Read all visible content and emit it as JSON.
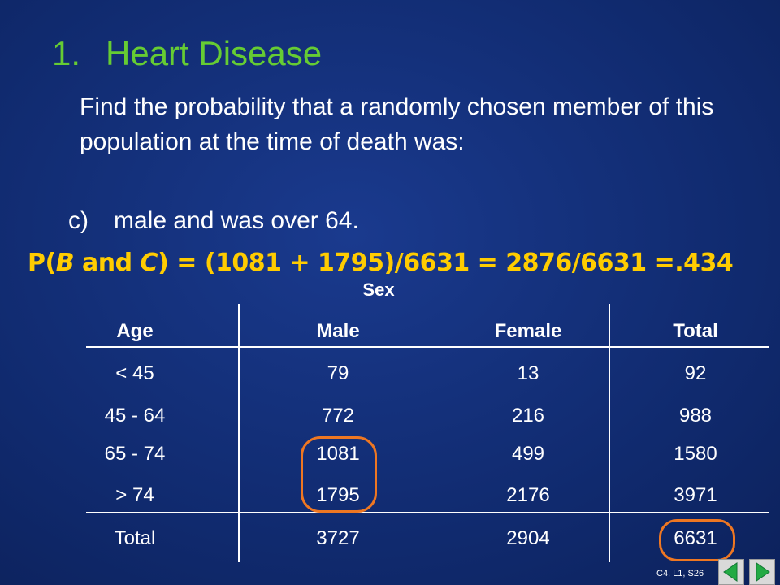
{
  "heading": {
    "number": "1.",
    "text": "Heart Disease"
  },
  "question": "Find the probability that a randomly chosen member of this population at the time of death was:",
  "sub_question": {
    "label": "c)",
    "text": "male and was over 64."
  },
  "formula": {
    "prefix": "P(",
    "event_b": "B",
    "and": " and ",
    "event_c": "C",
    "rest": ") = (1081 + 1795)/6631 = 2876/6631 =.434"
  },
  "table": {
    "group_header": "Sex",
    "columns": [
      "Age",
      "Male",
      "Female",
      "Total"
    ],
    "rows": [
      [
        "< 45",
        "79",
        "13",
        "92"
      ],
      [
        "45 - 64",
        "772",
        "216",
        "988"
      ],
      [
        "65 - 74",
        "1081",
        "499",
        "1580"
      ],
      [
        "> 74",
        "1795",
        "2176",
        "3971"
      ]
    ],
    "total_row": [
      "Total",
      "3727",
      "2904",
      "6631"
    ]
  },
  "footer": {
    "slide_ref": "C4, L1, S26"
  },
  "nav": {
    "prev_icon": "arrow-left-icon",
    "next_icon": "arrow-right-icon"
  },
  "colors": {
    "heading": "#66cc33",
    "formula": "#ffcc00",
    "highlight": "#ee7722",
    "nav_arrow": "#22aa44"
  }
}
